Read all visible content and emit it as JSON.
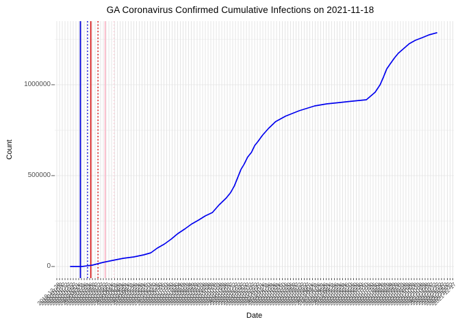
{
  "chart_data": {
    "type": "line",
    "title": "GA Coronavirus Confirmed Cumulative Infections on 2021-11-18",
    "xlabel": "Date",
    "ylabel": "Count",
    "legend": "none",
    "grid": true,
    "x_range": [
      "2020-01-22",
      "2021-11-18"
    ],
    "ylim": [
      0,
      1350000
    ],
    "y_axis": {
      "major_ticks": [
        {
          "label": "0",
          "value": 0
        },
        {
          "label": "500000",
          "value": 500000
        },
        {
          "label": "1000000",
          "value": 1000000
        }
      ],
      "minor_ticks": [
        250000,
        750000,
        1250000
      ]
    },
    "x_axis": {
      "first_tick": "2019-12-28",
      "interval_days": 5,
      "tick_count": 145,
      "label_rotation_deg": 45
    },
    "series": [
      {
        "name": "confirmed-cumulative",
        "color": "#0000EE",
        "points": [
          [
            "2020-01-22",
            0
          ],
          [
            "2020-02-12",
            0
          ],
          [
            "2020-03-02",
            7500
          ],
          [
            "2020-03-21",
            22600
          ],
          [
            "2020-04-08",
            33800
          ],
          [
            "2020-04-27",
            45100
          ],
          [
            "2020-05-16",
            52600
          ],
          [
            "2020-06-03",
            63900
          ],
          [
            "2020-06-16",
            75200
          ],
          [
            "2020-06-28",
            101500
          ],
          [
            "2020-07-11",
            124100
          ],
          [
            "2020-07-23",
            150400
          ],
          [
            "2020-08-04",
            180500
          ],
          [
            "2020-08-17",
            206800
          ],
          [
            "2020-08-29",
            233100
          ],
          [
            "2020-09-11",
            255600
          ],
          [
            "2020-09-23",
            278200
          ],
          [
            "2020-10-06",
            297000
          ],
          [
            "2020-10-18",
            338400
          ],
          [
            "2020-10-31",
            376000
          ],
          [
            "2020-11-08",
            406100
          ],
          [
            "2020-11-15",
            443600
          ],
          [
            "2020-11-21",
            488700
          ],
          [
            "2020-11-27",
            533900
          ],
          [
            "2020-12-03",
            563900
          ],
          [
            "2020-12-09",
            601500
          ],
          [
            "2020-12-16",
            627800
          ],
          [
            "2020-12-22",
            665400
          ],
          [
            "2020-12-28",
            688000
          ],
          [
            "2021-01-05",
            721800
          ],
          [
            "2021-01-16",
            759400
          ],
          [
            "2021-01-29",
            797000
          ],
          [
            "2021-02-16",
            827100
          ],
          [
            "2021-03-13",
            857200
          ],
          [
            "2021-04-10",
            883500
          ],
          [
            "2021-05-02",
            894800
          ],
          [
            "2021-05-26",
            902300
          ],
          [
            "2021-06-18",
            909800
          ],
          [
            "2021-07-13",
            917300
          ],
          [
            "2021-07-29",
            958700
          ],
          [
            "2021-08-07",
            1000000
          ],
          [
            "2021-08-13",
            1041400
          ],
          [
            "2021-08-19",
            1086500
          ],
          [
            "2021-08-25",
            1112800
          ],
          [
            "2021-09-02",
            1146600
          ],
          [
            "2021-09-09",
            1172900
          ],
          [
            "2021-09-19",
            1199300
          ],
          [
            "2021-09-29",
            1225600
          ],
          [
            "2021-10-10",
            1244400
          ],
          [
            "2021-10-23",
            1259400
          ],
          [
            "2021-11-04",
            1274500
          ],
          [
            "2021-11-18",
            1285700
          ]
        ]
      }
    ],
    "annotation_vlines": [
      {
        "date": "2020-02-09",
        "color": "#0000DD",
        "style": "solid",
        "width": 1.8
      },
      {
        "date": "2020-02-22",
        "color": "#0000DD",
        "style": "dotted",
        "width": 1.5
      },
      {
        "date": "2020-02-28",
        "color": "#D40000",
        "style": "solid",
        "width": 1.5
      },
      {
        "date": "2020-03-12",
        "color": "#D40000",
        "style": "dotted",
        "width": 1.5
      },
      {
        "date": "2020-03-25",
        "color": "#FFB0C4",
        "style": "solid",
        "width": 1.5
      },
      {
        "date": "2020-04-10",
        "color": "#FFCFD9",
        "style": "dotted",
        "width": 1.5
      }
    ],
    "colors": {
      "line": "#0000EE",
      "grid_vertical": "#E4E4E4",
      "grid_major_horizontal": "#EBEBEB",
      "grid_minor_horizontal": "#F3F3F3",
      "axis_text": "#4D4D4D",
      "tick_mark": "#555555",
      "title_text": "#000000"
    }
  }
}
